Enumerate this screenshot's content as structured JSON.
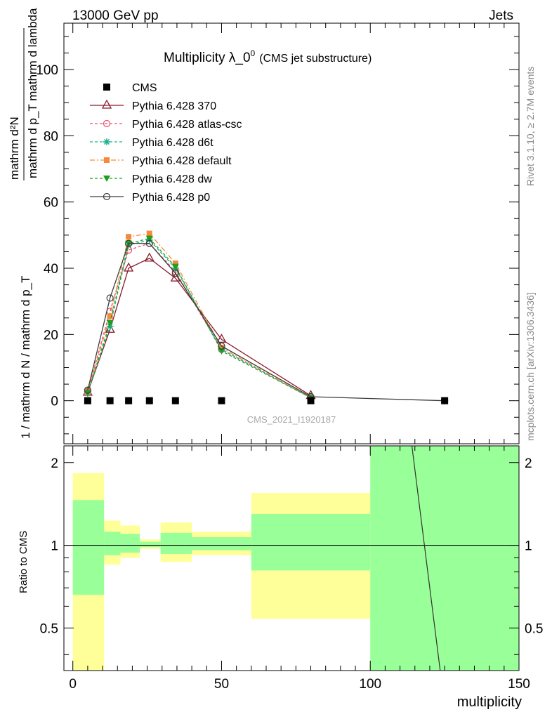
{
  "header": {
    "left": "13000 GeV pp",
    "right": "Jets"
  },
  "side_labels": {
    "rivet": "Rivet 3.1.10, ≥ 2.7M events",
    "mcplots": "mcplots.cern.ch [arXiv:1306.3436]"
  },
  "watermark": "CMS_2021_I1920187",
  "chart_data": [
    {
      "type": "line",
      "title": "Multiplicity λ_0",
      "title_sup": "0",
      "subtitle": "(CMS jet substructure)",
      "ylabel_numerator": "mathrm d²N",
      "ylabel_denominator": "mathrm d p_T mathrm d lambda",
      "ylabel_main": "1 / mathrm d N / mathrm d p_T",
      "xlim": [
        -3,
        150
      ],
      "ylim": [
        -13,
        114
      ],
      "yticks": [
        0,
        20,
        40,
        60,
        80,
        100
      ],
      "legend_position": "top-left",
      "series": [
        {
          "name": "CMS",
          "color": "#000000",
          "marker": "square",
          "dash": "none",
          "x": [
            5,
            12.5,
            18.75,
            25.75,
            34.5,
            50,
            80,
            125
          ],
          "y": [
            0,
            0,
            0,
            0,
            0,
            0,
            0,
            0
          ]
        },
        {
          "name": "Pythia 6.428 370",
          "color": "#8b1a2a",
          "marker": "triangle-open",
          "dash": "none",
          "x": [
            5,
            12.5,
            18.75,
            25.75,
            34.5,
            50,
            80
          ],
          "y": [
            2.5,
            21.5,
            40,
            43,
            37,
            18.5,
            1.5
          ]
        },
        {
          "name": "Pythia 6.428 atlas-csc",
          "color": "#e8506a",
          "marker": "circle-open",
          "dash": "4,3",
          "x": [
            5,
            12.5,
            18.75,
            25.75,
            34.5,
            50,
            80
          ],
          "y": [
            2.8,
            27,
            45.5,
            47.5,
            39,
            15.5,
            0.9
          ]
        },
        {
          "name": "Pythia 6.428 d6t",
          "color": "#18b08c",
          "marker": "star",
          "dash": "4,3",
          "x": [
            5,
            12.5,
            18.75,
            25.75,
            34.5,
            50,
            80
          ],
          "y": [
            2.2,
            22.5,
            47,
            48.5,
            40,
            15.5,
            0.9
          ]
        },
        {
          "name": "Pythia 6.428 default",
          "color": "#f58a3a",
          "marker": "square-filled",
          "dash": "7,3,2,3",
          "x": [
            5,
            12.5,
            18.75,
            25.75,
            34.5,
            50,
            80
          ],
          "y": [
            2.6,
            25.5,
            49.5,
            50.5,
            41.5,
            16,
            0.9
          ]
        },
        {
          "name": "Pythia 6.428 dw",
          "color": "#1f9e1f",
          "marker": "triangle-down",
          "dash": "4,3",
          "x": [
            5,
            12.5,
            18.75,
            25.75,
            34.5,
            50,
            80
          ],
          "y": [
            2.4,
            23.5,
            47.5,
            49,
            40.5,
            15,
            0.9
          ]
        },
        {
          "name": "Pythia 6.428 p0",
          "color": "#3c3c3c",
          "marker": "circle-open",
          "dash": "none",
          "x": [
            5,
            12.5,
            18.75,
            25.75,
            34.5,
            50,
            80,
            125
          ],
          "y": [
            3.2,
            31,
            47.5,
            47.5,
            38.5,
            16.5,
            1.2,
            0
          ]
        }
      ]
    },
    {
      "type": "area",
      "ylabel": "Ratio to CMS",
      "xlabel": "multiplicity",
      "xlim": [
        -3,
        150
      ],
      "ylim": [
        0.35,
        2.3
      ],
      "yticks": [
        0.5,
        1,
        2
      ],
      "xticks": [
        0,
        50,
        100,
        150
      ],
      "bins": [
        {
          "x0": 0,
          "x1": 10.5,
          "yellow": [
            0.3,
            1.83
          ],
          "green": [
            0.66,
            1.46
          ]
        },
        {
          "x0": 10.5,
          "x1": 16,
          "yellow": [
            0.85,
            1.23
          ],
          "green": [
            0.92,
            1.12
          ]
        },
        {
          "x0": 16,
          "x1": 22.5,
          "yellow": [
            0.9,
            1.18
          ],
          "green": [
            0.94,
            1.1
          ]
        },
        {
          "x0": 22.5,
          "x1": 29.5,
          "yellow": [
            0.97,
            1.05
          ],
          "green": [
            0.985,
            1.03
          ]
        },
        {
          "x0": 29.5,
          "x1": 40,
          "yellow": [
            0.87,
            1.21
          ],
          "green": [
            0.93,
            1.11
          ]
        },
        {
          "x0": 40,
          "x1": 60,
          "yellow": [
            0.92,
            1.12
          ],
          "green": [
            0.96,
            1.07
          ]
        },
        {
          "x0": 60,
          "x1": 100,
          "yellow": [
            0.54,
            1.55
          ],
          "green": [
            0.81,
            1.3
          ]
        },
        {
          "x0": 100,
          "x1": 150,
          "yellow": [
            0.35,
            2.3
          ],
          "green": [
            0.35,
            2.3
          ]
        }
      ],
      "reference_line": 1,
      "ratio_line": {
        "x": [
          114,
          123.5
        ],
        "y": [
          2.3,
          0.35
        ]
      }
    }
  ]
}
